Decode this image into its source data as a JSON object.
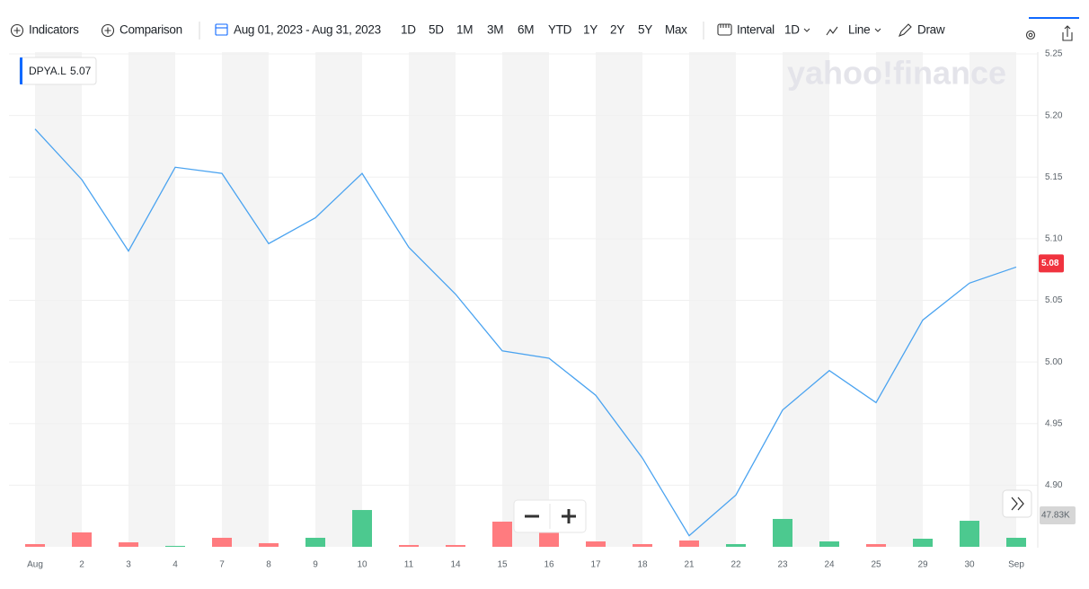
{
  "toolbar": {
    "indicators": "Indicators",
    "comparison": "Comparison",
    "date_range": "Aug 01, 2023 - Aug 31, 2023",
    "ranges": [
      "1D",
      "5D",
      "1M",
      "3M",
      "6M",
      "YTD",
      "1Y",
      "2Y",
      "5Y",
      "Max"
    ],
    "interval": "Interval",
    "interval_value": "1D",
    "chart_style": "Line",
    "draw": "Draw"
  },
  "watermark": "yahoo!finance",
  "chart_data": {
    "type": "line",
    "categories": [
      "Aug",
      "2",
      "3",
      "4",
      "7",
      "8",
      "9",
      "10",
      "11",
      "14",
      "15",
      "16",
      "17",
      "18",
      "21",
      "22",
      "23",
      "24",
      "25",
      "29",
      "30",
      "Sep"
    ],
    "series": [
      {
        "name": "DPYA.L",
        "color": "#4aa3f0",
        "values": [
          5.189,
          5.148,
          5.09,
          5.158,
          5.153,
          5.096,
          5.117,
          5.153,
          5.093,
          5.055,
          5.009,
          5.003,
          4.973,
          4.922,
          4.859,
          4.892,
          4.961,
          4.993,
          4.967,
          5.034,
          5.064,
          5.077
        ]
      }
    ],
    "legend_value": 5.07,
    "price_tag": 5.08,
    "price_tag_color": "#f0333f",
    "ylim": [
      4.85,
      5.25
    ],
    "yticks": [
      {
        "value": 4.9,
        "label": "4.90"
      },
      4.95,
      {
        "value": 5.0,
        "label": "5.00"
      },
      5.05,
      {
        "value": 5.1,
        "label": "5.10"
      },
      5.15,
      {
        "value": 5.2,
        "label": "5.20"
      },
      5.25
    ],
    "volume": {
      "values": [
        4.1,
        21.9,
        6.8,
        1.4,
        13.7,
        5.5,
        13.7,
        56.0,
        2.7,
        2.7,
        38.3,
        24.6,
        8.2,
        4.1,
        9.6,
        4.1,
        42.4,
        8.2,
        4.1,
        12.3,
        39.6,
        13.7
      ],
      "marker": {
        "value": 47.83,
        "label": "47.83K"
      },
      "up_color": "#4cc98f",
      "down_color": "#ff7b7f"
    }
  }
}
